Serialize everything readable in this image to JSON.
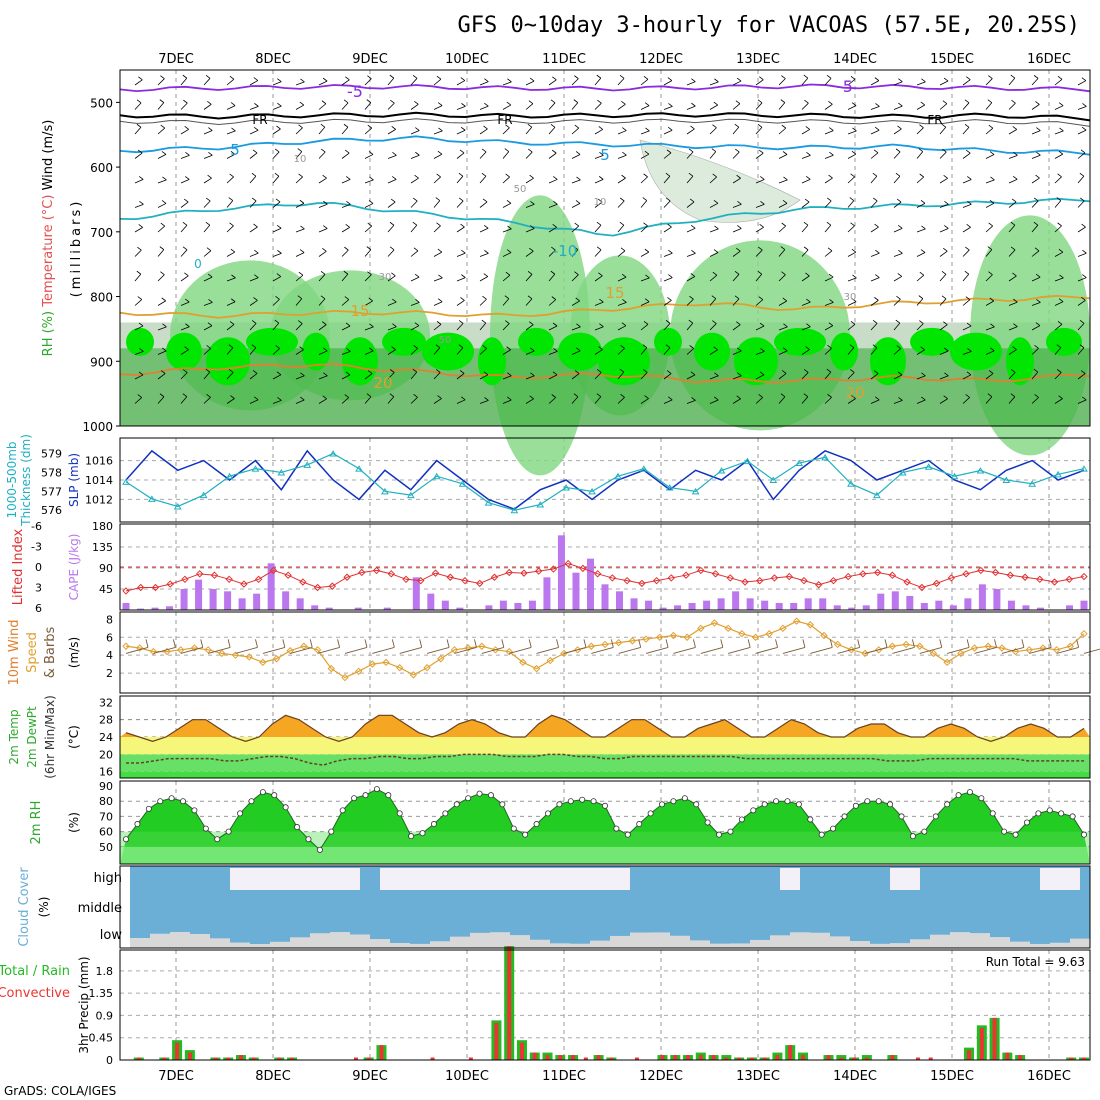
{
  "title": "GFS 0~10day 3-hourly for VACOAS (57.5E, 20.25S)",
  "credit": "GrADS: COLA/IGES",
  "dates": [
    "7DEC",
    "8DEC",
    "9DEC",
    "10DEC",
    "11DEC",
    "12DEC",
    "13DEC",
    "14DEC",
    "15DEC",
    "16DEC"
  ],
  "colors": {
    "rh_dark": "#2ea82e",
    "rh_mid": "#7fd67f",
    "rh_light": "#c8dcc8",
    "rh_bright": "#00e600",
    "slp": "#1030c0",
    "thickness": "#20b0c0",
    "cape": "#bb77ee",
    "lifted": "#e03030",
    "wind_speed": "#e0a030",
    "barb": "#7a5a3a",
    "temp": "#f0a020",
    "cloud": "#6baed6",
    "precip_total": "#22bb22",
    "precip_conv": "#ee3333"
  },
  "chart_data": [
    {
      "type": "heatmap",
      "panel": "upper-air",
      "ylabel_parts": [
        "RH (%)",
        "Temperature (°C)",
        "Wind (m/s)"
      ],
      "ylabel2": "(millibars)",
      "yticks": [
        500,
        600,
        700,
        800,
        900,
        1000
      ],
      "ylim": [
        450,
        1000
      ],
      "contour_labels": [
        "-5",
        "-5",
        "FR",
        "FR",
        "FR",
        "5",
        "5",
        "-10",
        "15",
        "15",
        "20",
        "20",
        "10",
        "10",
        "30",
        "30",
        "50",
        "50",
        "0"
      ],
      "isotherms": [
        {
          "label": "-5",
          "pressure": [
            480,
            478,
            476,
            476,
            478,
            479,
            477,
            475,
            476,
            478,
            480
          ]
        },
        {
          "label": "FR",
          "pressure": [
            520,
            522,
            520,
            519,
            521,
            520,
            519,
            520,
            522,
            520,
            525
          ]
        },
        {
          "label": "5",
          "pressure": [
            575,
            570,
            560,
            555,
            562,
            565,
            568,
            570,
            568,
            575,
            578
          ]
        },
        {
          "label": "-10",
          "pressure": [
            680,
            665,
            655,
            670,
            685,
            705,
            680,
            665,
            660,
            655,
            650
          ]
        },
        {
          "label": "15",
          "pressure": [
            825,
            830,
            825,
            825,
            830,
            820,
            810,
            820,
            810,
            805,
            800
          ]
        },
        {
          "label": "20",
          "pressure": [
            920,
            910,
            905,
            915,
            925,
            920,
            930,
            930,
            925,
            930,
            920
          ]
        }
      ]
    },
    {
      "type": "line",
      "panel": "slp-thickness",
      "ylabel_left": "Thickness (dm)",
      "ylabel_left_line1": "1000-500mb",
      "ylabel_right": "SLP (mb)",
      "yticks_left": [
        576,
        577,
        578,
        579
      ],
      "yticks_right": [
        1012,
        1014,
        1016
      ],
      "series": [
        {
          "key": "slp",
          "values": [
            1014,
            1017,
            1015,
            1016,
            1014,
            1016,
            1013,
            1017,
            1014,
            1012,
            1015,
            1013,
            1016,
            1014,
            1012,
            1011,
            1013,
            1014,
            1012,
            1014,
            1015,
            1013,
            1015,
            1014,
            1016,
            1012,
            1015,
            1017,
            1016,
            1014,
            1015,
            1016,
            1014,
            1013,
            1015,
            1016,
            1014,
            1015
          ]
        },
        {
          "key": "thickness",
          "values": [
            577.5,
            576.6,
            576.2,
            576.8,
            577.8,
            578.2,
            578.0,
            578.4,
            579.0,
            578.2,
            577.0,
            576.8,
            577.8,
            577.4,
            576.4,
            576.0,
            576.3,
            577.2,
            577.0,
            577.8,
            578.2,
            577.2,
            577.0,
            578.1,
            578.6,
            577.6,
            578.5,
            578.8,
            577.4,
            576.8,
            578.0,
            578.3,
            577.8,
            578.1,
            577.6,
            577.4,
            577.9,
            578.2
          ]
        }
      ]
    },
    {
      "type": "bar",
      "panel": "cape-lifted",
      "ylabel_left": "Lifted Index",
      "ylabel_right": "CAPE (J/kg)",
      "yticks_left": [
        -6,
        -3,
        0,
        3,
        6
      ],
      "yticks_right": [
        45,
        90,
        135,
        180
      ],
      "cape": [
        15,
        3,
        5,
        8,
        45,
        65,
        45,
        40,
        25,
        35,
        100,
        40,
        25,
        10,
        5,
        0,
        5,
        0,
        5,
        0,
        70,
        35,
        20,
        5,
        0,
        10,
        20,
        15,
        20,
        70,
        160,
        80,
        110,
        55,
        40,
        25,
        20,
        5,
        10,
        15,
        20,
        25,
        40,
        25,
        20,
        15,
        15,
        25,
        25,
        10,
        5,
        10,
        35,
        40,
        30,
        15,
        20,
        10,
        25,
        55,
        45,
        20,
        10,
        5,
        0,
        10,
        20
      ],
      "lifted": [
        3.5,
        3.0,
        3.0,
        2.5,
        1.8,
        1.0,
        1.2,
        1.8,
        2.5,
        1.8,
        0.5,
        1.2,
        2.2,
        3.0,
        2.8,
        1.5,
        0.8,
        0.5,
        1.0,
        1.8,
        2.0,
        0.9,
        1.5,
        2.0,
        2.4,
        1.5,
        0.8,
        0.9,
        0.6,
        0.3,
        -0.5,
        0.2,
        1.0,
        1.6,
        2.0,
        2.4,
        2.0,
        1.6,
        1.2,
        0.5,
        1.0,
        1.6,
        2.2,
        2.0,
        1.6,
        1.4,
        2.0,
        2.6,
        2.0,
        1.4,
        1.0,
        0.8,
        1.2,
        2.2,
        3.0,
        2.4,
        1.6,
        1.0,
        0.5,
        0.8,
        1.2,
        1.5,
        1.8,
        2.2,
        1.8,
        1.4
      ]
    },
    {
      "type": "line",
      "panel": "wind",
      "ylabel_parts": [
        "10m Wind",
        "Speed",
        "& Barbs"
      ],
      "yunit": "(m/s)",
      "yticks": [
        2,
        4,
        6,
        8
      ],
      "values": [
        5.0,
        4.8,
        4.4,
        4.4,
        4.6,
        4.8,
        4.6,
        4.2,
        4.0,
        3.8,
        3.2,
        3.6,
        4.5,
        5.0,
        4.6,
        2.5,
        1.5,
        2.2,
        3.0,
        3.2,
        2.6,
        1.8,
        2.6,
        3.6,
        4.6,
        4.8,
        5.0,
        4.6,
        4.4,
        3.2,
        2.5,
        3.4,
        4.2,
        4.6,
        5.0,
        5.2,
        5.4,
        5.6,
        5.8,
        6.0,
        6.2,
        6.0,
        7.0,
        7.6,
        7.0,
        6.4,
        6.0,
        6.4,
        7.0,
        7.8,
        7.4,
        6.2,
        5.2,
        4.6,
        4.2,
        4.6,
        5.0,
        5.2,
        5.0,
        4.2,
        3.2,
        4.2,
        4.8,
        5.0,
        4.8,
        4.4,
        4.6,
        4.8,
        4.6,
        5.0,
        6.4
      ]
    },
    {
      "type": "area",
      "panel": "temp",
      "ylabel_parts": [
        "2m Temp",
        "2m DewPt",
        "(6hr Min/Max)"
      ],
      "yunit": "(°C)",
      "yticks": [
        16,
        20,
        24,
        28,
        32
      ],
      "temp": [
        25,
        24,
        23,
        24,
        26,
        28,
        28,
        26,
        24,
        23,
        24,
        27,
        29,
        28,
        26,
        24,
        23,
        24,
        27,
        29,
        29,
        27,
        25,
        24,
        25,
        27,
        28,
        27,
        25,
        24,
        24,
        27,
        29,
        28,
        26,
        24,
        24,
        26,
        28,
        28,
        26,
        24,
        24,
        26,
        27,
        28,
        26,
        24,
        24,
        26,
        28,
        27,
        25,
        24,
        24,
        26,
        27,
        27,
        25,
        24,
        24,
        26,
        27,
        26,
        24,
        23,
        24,
        26,
        27,
        26,
        24,
        24,
        26
      ],
      "dewpt": [
        18,
        18,
        18.5,
        19,
        19,
        19,
        19,
        18.5,
        18.5,
        19,
        19.5,
        19.5,
        19,
        18,
        17.5,
        18.5,
        19,
        19,
        19.5,
        19.5,
        19,
        19,
        19.5,
        19.5,
        20,
        20,
        20,
        19.5,
        19.5,
        19.5,
        20,
        20,
        19.5,
        19.5,
        19,
        19,
        19.5,
        19.5,
        19.5,
        19.5,
        19.5,
        19.5,
        19.5,
        19.5,
        19,
        19,
        19,
        19,
        19,
        19,
        19,
        19,
        19,
        19,
        18.5,
        18.5,
        18.5,
        19,
        19,
        19,
        19,
        19,
        19,
        19,
        18.5,
        18.5,
        18.5,
        18.5,
        18.5
      ]
    },
    {
      "type": "area",
      "panel": "rh",
      "ylabel": "2m RH",
      "yunit": "(%)",
      "yticks": [
        50,
        60,
        70,
        80,
        90
      ],
      "values": [
        55,
        65,
        75,
        80,
        82,
        80,
        74,
        62,
        55,
        60,
        72,
        80,
        86,
        84,
        76,
        63,
        55,
        48,
        60,
        74,
        82,
        84,
        88,
        84,
        72,
        57,
        59,
        65,
        72,
        78,
        82,
        85,
        84,
        78,
        62,
        58,
        65,
        72,
        78,
        80,
        81,
        80,
        77,
        62,
        58,
        65,
        72,
        78,
        80,
        82,
        78,
        66,
        58,
        60,
        68,
        74,
        78,
        80,
        80,
        78,
        68,
        58,
        62,
        70,
        77,
        80,
        80,
        78,
        70,
        57,
        60,
        70,
        78,
        84,
        86,
        82,
        72,
        60,
        58,
        66,
        72,
        74,
        72,
        70,
        58
      ]
    },
    {
      "type": "area",
      "panel": "cloud",
      "ylabel": "Cloud Cover",
      "yunit": "(%)",
      "levels": [
        "high",
        "middle",
        "low"
      ]
    },
    {
      "type": "bar",
      "panel": "precip",
      "ylabel_parts": [
        "Total / Rain",
        "Convective"
      ],
      "ylabel": "3hr Precip (mm)",
      "yticks": [
        0,
        0.45,
        0.9,
        1.35,
        1.8
      ],
      "annotation": "Run Total = 9.63",
      "total": [
        0,
        0.05,
        0,
        0.05,
        0.4,
        0.2,
        0,
        0.05,
        0.05,
        0.1,
        0.05,
        0,
        0.05,
        0.05,
        0,
        0,
        0,
        0,
        0,
        0.05,
        0.3,
        0,
        0,
        0,
        0,
        0,
        0,
        0,
        0,
        0.8,
        2.3,
        0.4,
        0.15,
        0.15,
        0.1,
        0.1,
        0,
        0.1,
        0.05,
        0,
        0,
        0,
        0.1,
        0.1,
        0.1,
        0.15,
        0.1,
        0.1,
        0.05,
        0.05,
        0.05,
        0.15,
        0.3,
        0.15,
        0,
        0.1,
        0.1,
        0.05,
        0.1,
        0,
        0.1,
        0,
        0,
        0,
        0,
        0,
        0.25,
        0.7,
        0.85,
        0.15,
        0.1,
        0,
        0,
        0,
        0.05,
        0.05
      ],
      "conv": [
        0,
        0.05,
        0,
        0.05,
        0.35,
        0.15,
        0,
        0.05,
        0.05,
        0.1,
        0.05,
        0,
        0.05,
        0.05,
        0,
        0,
        0,
        0,
        0.05,
        0.05,
        0.3,
        0,
        0,
        0,
        0.05,
        0,
        0,
        0.05,
        0,
        0.75,
        2.3,
        0.35,
        0.15,
        0.1,
        0.1,
        0.1,
        0.05,
        0.1,
        0.05,
        0,
        0.05,
        0,
        0.1,
        0.1,
        0.1,
        0.1,
        0.1,
        0.05,
        0.05,
        0.05,
        0.05,
        0.1,
        0.3,
        0.1,
        0,
        0.1,
        0.05,
        0.05,
        0.05,
        0,
        0.1,
        0,
        0.05,
        0.05,
        0,
        0,
        0.2,
        0.65,
        0.85,
        0.15,
        0.1,
        0,
        0,
        0,
        0.05,
        0.05
      ]
    }
  ]
}
